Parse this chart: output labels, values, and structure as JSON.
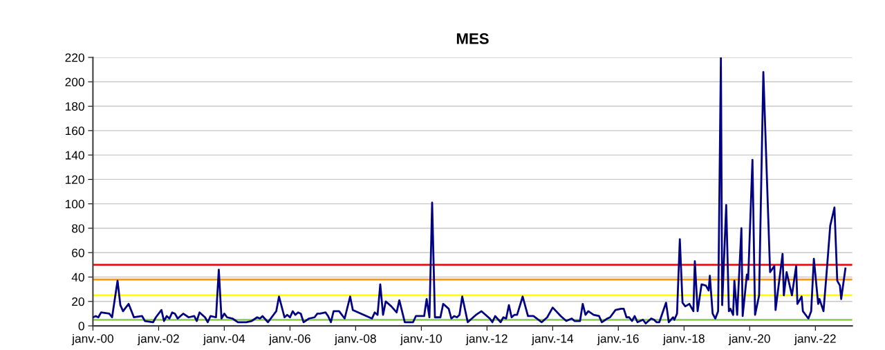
{
  "chart_data": {
    "type": "line",
    "title": "MES",
    "x": [
      "2000-01",
      "2000-02",
      "2000-03",
      "2000-04",
      "2000-07",
      "2000-08",
      "2000-10",
      "2000-11",
      "2000-12",
      "2001-02",
      "2001-04",
      "2001-07",
      "2001-08",
      "2001-11",
      "2001-12",
      "2002-02",
      "2002-03",
      "2002-04",
      "2002-05",
      "2002-06",
      "2002-07",
      "2002-08",
      "2002-10",
      "2002-12",
      "2003-02",
      "2003-03",
      "2003-04",
      "2003-06",
      "2003-07",
      "2003-08",
      "2003-10",
      "2003-11",
      "2003-12",
      "2004-01",
      "2004-02",
      "2004-04",
      "2004-06",
      "2004-09",
      "2004-11",
      "2005-01",
      "2005-02",
      "2005-03",
      "2005-05",
      "2005-07",
      "2005-08",
      "2005-09",
      "2005-11",
      "2005-12",
      "2006-01",
      "2006-02",
      "2006-03",
      "2006-04",
      "2006-05",
      "2006-06",
      "2006-08",
      "2006-10",
      "2006-11",
      "2006-12",
      "2007-02",
      "2007-03",
      "2007-04",
      "2007-05",
      "2007-07",
      "2007-09",
      "2007-11",
      "2007-12",
      "2008-03",
      "2008-07",
      "2008-08",
      "2008-09",
      "2008-10",
      "2008-11",
      "2008-12",
      "2009-02",
      "2009-04",
      "2009-05",
      "2009-07",
      "2009-10",
      "2009-11",
      "2010-02",
      "2010-03",
      "2010-04",
      "2010-05",
      "2010-06",
      "2010-08",
      "2010-09",
      "2010-11",
      "2010-12",
      "2011-01",
      "2011-02",
      "2011-03",
      "2011-04",
      "2011-06",
      "2011-08",
      "2011-09",
      "2011-11",
      "2012-02",
      "2012-03",
      "2012-04",
      "2012-06",
      "2012-07",
      "2012-08",
      "2012-09",
      "2012-10",
      "2012-11",
      "2012-12",
      "2013-02",
      "2013-04",
      "2013-06",
      "2013-09",
      "2013-11",
      "2014-01",
      "2014-04",
      "2014-06",
      "2014-08",
      "2014-09",
      "2014-11",
      "2014-12",
      "2015-01",
      "2015-02",
      "2015-04",
      "2015-06",
      "2015-07",
      "2015-09",
      "2015-10",
      "2015-12",
      "2016-02",
      "2016-03",
      "2016-04",
      "2016-05",
      "2016-06",
      "2016-07",
      "2016-08",
      "2016-10",
      "2016-11",
      "2017-01",
      "2017-02",
      "2017-03",
      "2017-04",
      "2017-06-15",
      "2017-07-15",
      "2017-09-01",
      "2017-09-15",
      "2017-10-15",
      "2017-11-15",
      "2017-12-15",
      "2018-01-15",
      "2018-03-01",
      "2018-04-15",
      "2018-05-01",
      "2018-06-01",
      "2018-07-15",
      "2018-09-01",
      "2018-10-01",
      "2018-10-15",
      "2018-11-15",
      "2018-12-15",
      "2019-01-15",
      "2019-02-15",
      "2019-03-01",
      "2019-04-15",
      "2019-05-15",
      "2019-06-01",
      "2019-07-01",
      "2019-07-15",
      "2019-08-15",
      "2019-10-01",
      "2019-10-15",
      "2019-12-01",
      "2019-12-15",
      "2020-02-01",
      "2020-03-01",
      "2020-04-15",
      "2020-06-01",
      "2020-08-15",
      "2020-10-01",
      "2020-10-15",
      "2021-01-01",
      "2021-01-15",
      "2021-02-15",
      "2021-04-15",
      "2021-06-01",
      "2021-06-15",
      "2021-08-01",
      "2021-08-15",
      "2021-10-15",
      "2021-11-15",
      "2021-12-15",
      "2022-02-01",
      "2022-02-15",
      "2022-04-01",
      "2022-05-01",
      "2022-06-15",
      "2022-08-01",
      "2022-09-01",
      "2022-10-01",
      "2022-10-15",
      "2022-12-01"
    ],
    "series": [
      {
        "color": "#000080",
        "values": [
          7,
          8,
          7,
          11,
          10,
          7,
          37,
          17,
          12,
          18,
          7,
          8,
          4,
          3,
          7,
          13,
          4,
          8,
          6,
          11,
          10,
          6,
          10,
          7,
          8,
          4,
          11,
          7,
          3,
          8,
          7,
          46,
          6,
          10,
          7,
          6,
          3,
          3,
          4,
          7,
          6,
          8,
          3,
          9,
          12,
          24,
          7,
          9,
          7,
          12,
          9,
          11,
          10,
          3,
          6,
          7,
          10,
          10,
          11,
          8,
          3,
          12,
          12,
          6,
          24,
          13,
          10,
          6,
          11,
          9,
          34,
          9,
          20,
          16,
          11,
          21,
          3,
          3,
          8,
          8,
          22,
          7,
          101,
          7,
          7,
          18,
          14,
          6,
          8,
          7,
          9,
          24,
          3,
          7,
          9,
          12,
          6,
          3,
          8,
          3,
          7,
          6,
          17,
          7,
          9,
          9,
          24,
          8,
          8,
          3,
          7,
          15,
          8,
          4,
          6,
          4,
          4,
          18,
          9,
          12,
          9,
          8,
          3,
          6,
          7,
          13,
          14,
          14,
          7,
          7,
          4,
          8,
          3,
          5,
          2,
          6,
          5,
          3,
          3,
          19,
          3,
          7,
          5,
          10,
          71,
          19,
          16,
          18,
          12,
          53,
          12,
          34,
          33,
          29,
          41,
          10,
          6,
          12,
          220,
          17,
          99,
          12,
          14,
          9,
          37,
          9,
          80,
          8,
          42,
          38,
          136,
          9,
          25,
          208,
          44,
          49,
          13,
          59,
          25,
          44,
          25,
          49,
          18,
          24,
          12,
          6,
          12,
          55,
          18,
          22,
          12,
          39,
          82,
          97,
          37,
          33,
          22,
          47
        ]
      }
    ],
    "xlim": [
      "2000-01-01",
      "2023-02-15"
    ],
    "xticks": [
      {
        "value": "2000-01-01",
        "label": "janv.-00"
      },
      {
        "value": "2002-01-01",
        "label": "janv.-02"
      },
      {
        "value": "2004-01-01",
        "label": "janv.-04"
      },
      {
        "value": "2006-01-01",
        "label": "janv.-06"
      },
      {
        "value": "2008-01-01",
        "label": "janv.-08"
      },
      {
        "value": "2010-01-01",
        "label": "janv.-10"
      },
      {
        "value": "2012-01-01",
        "label": "janv.-12"
      },
      {
        "value": "2014-01-01",
        "label": "janv.-14"
      },
      {
        "value": "2016-01-01",
        "label": "janv.-16"
      },
      {
        "value": "2018-01-01",
        "label": "janv.-18"
      },
      {
        "value": "2020-01-01",
        "label": "janv.-20"
      },
      {
        "value": "2022-01-01",
        "label": "janv.-22"
      }
    ],
    "ylim": [
      0,
      220
    ],
    "yticks": [
      0,
      20,
      40,
      60,
      80,
      100,
      120,
      140,
      160,
      180,
      200,
      220
    ],
    "grid": "y",
    "ref_lines": [
      {
        "axis": "y",
        "value": 50,
        "color": "#ff0000"
      },
      {
        "axis": "y",
        "value": 38,
        "color": "#ff9900"
      },
      {
        "axis": "y",
        "value": 25,
        "color": "#ffff00"
      },
      {
        "axis": "y",
        "value": 5,
        "color": "#92d050"
      }
    ]
  }
}
